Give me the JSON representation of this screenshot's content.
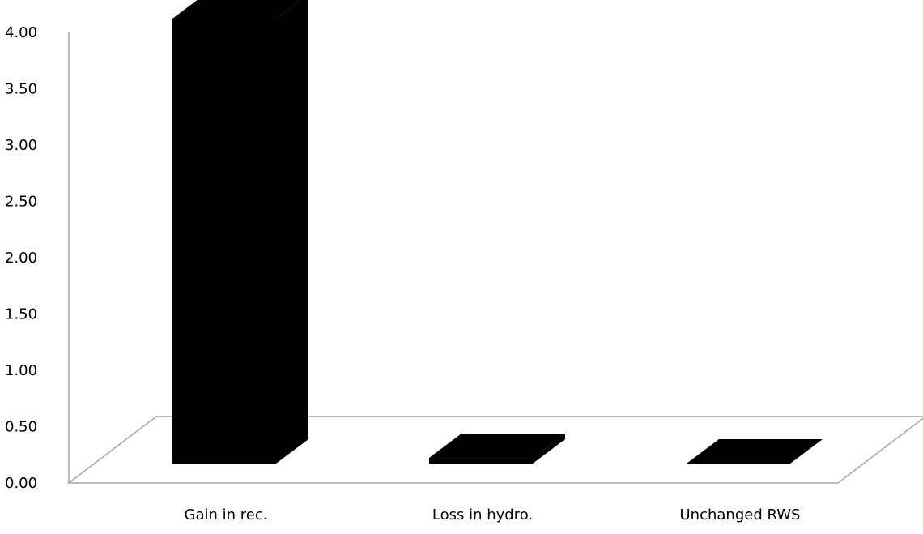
{
  "chart_data": {
    "type": "bar",
    "categories": [
      "Gain in rec.",
      "Loss in hydro.",
      "Unchanged RWS"
    ],
    "values": [
      3.95,
      0.05,
      0.0
    ],
    "title": "",
    "xlabel": "",
    "ylabel": "",
    "ylim": [
      0,
      4
    ],
    "yticks": [
      "0.00",
      "0.50",
      "1.00",
      "1.50",
      "2.00",
      "2.50",
      "3.00",
      "3.50",
      "4.00"
    ],
    "grid": false,
    "legend": "none",
    "style": "3d",
    "colors": {
      "bar": "#000000",
      "axis": "#a6a6a6",
      "text": "#000000",
      "background": "#ffffff"
    }
  }
}
